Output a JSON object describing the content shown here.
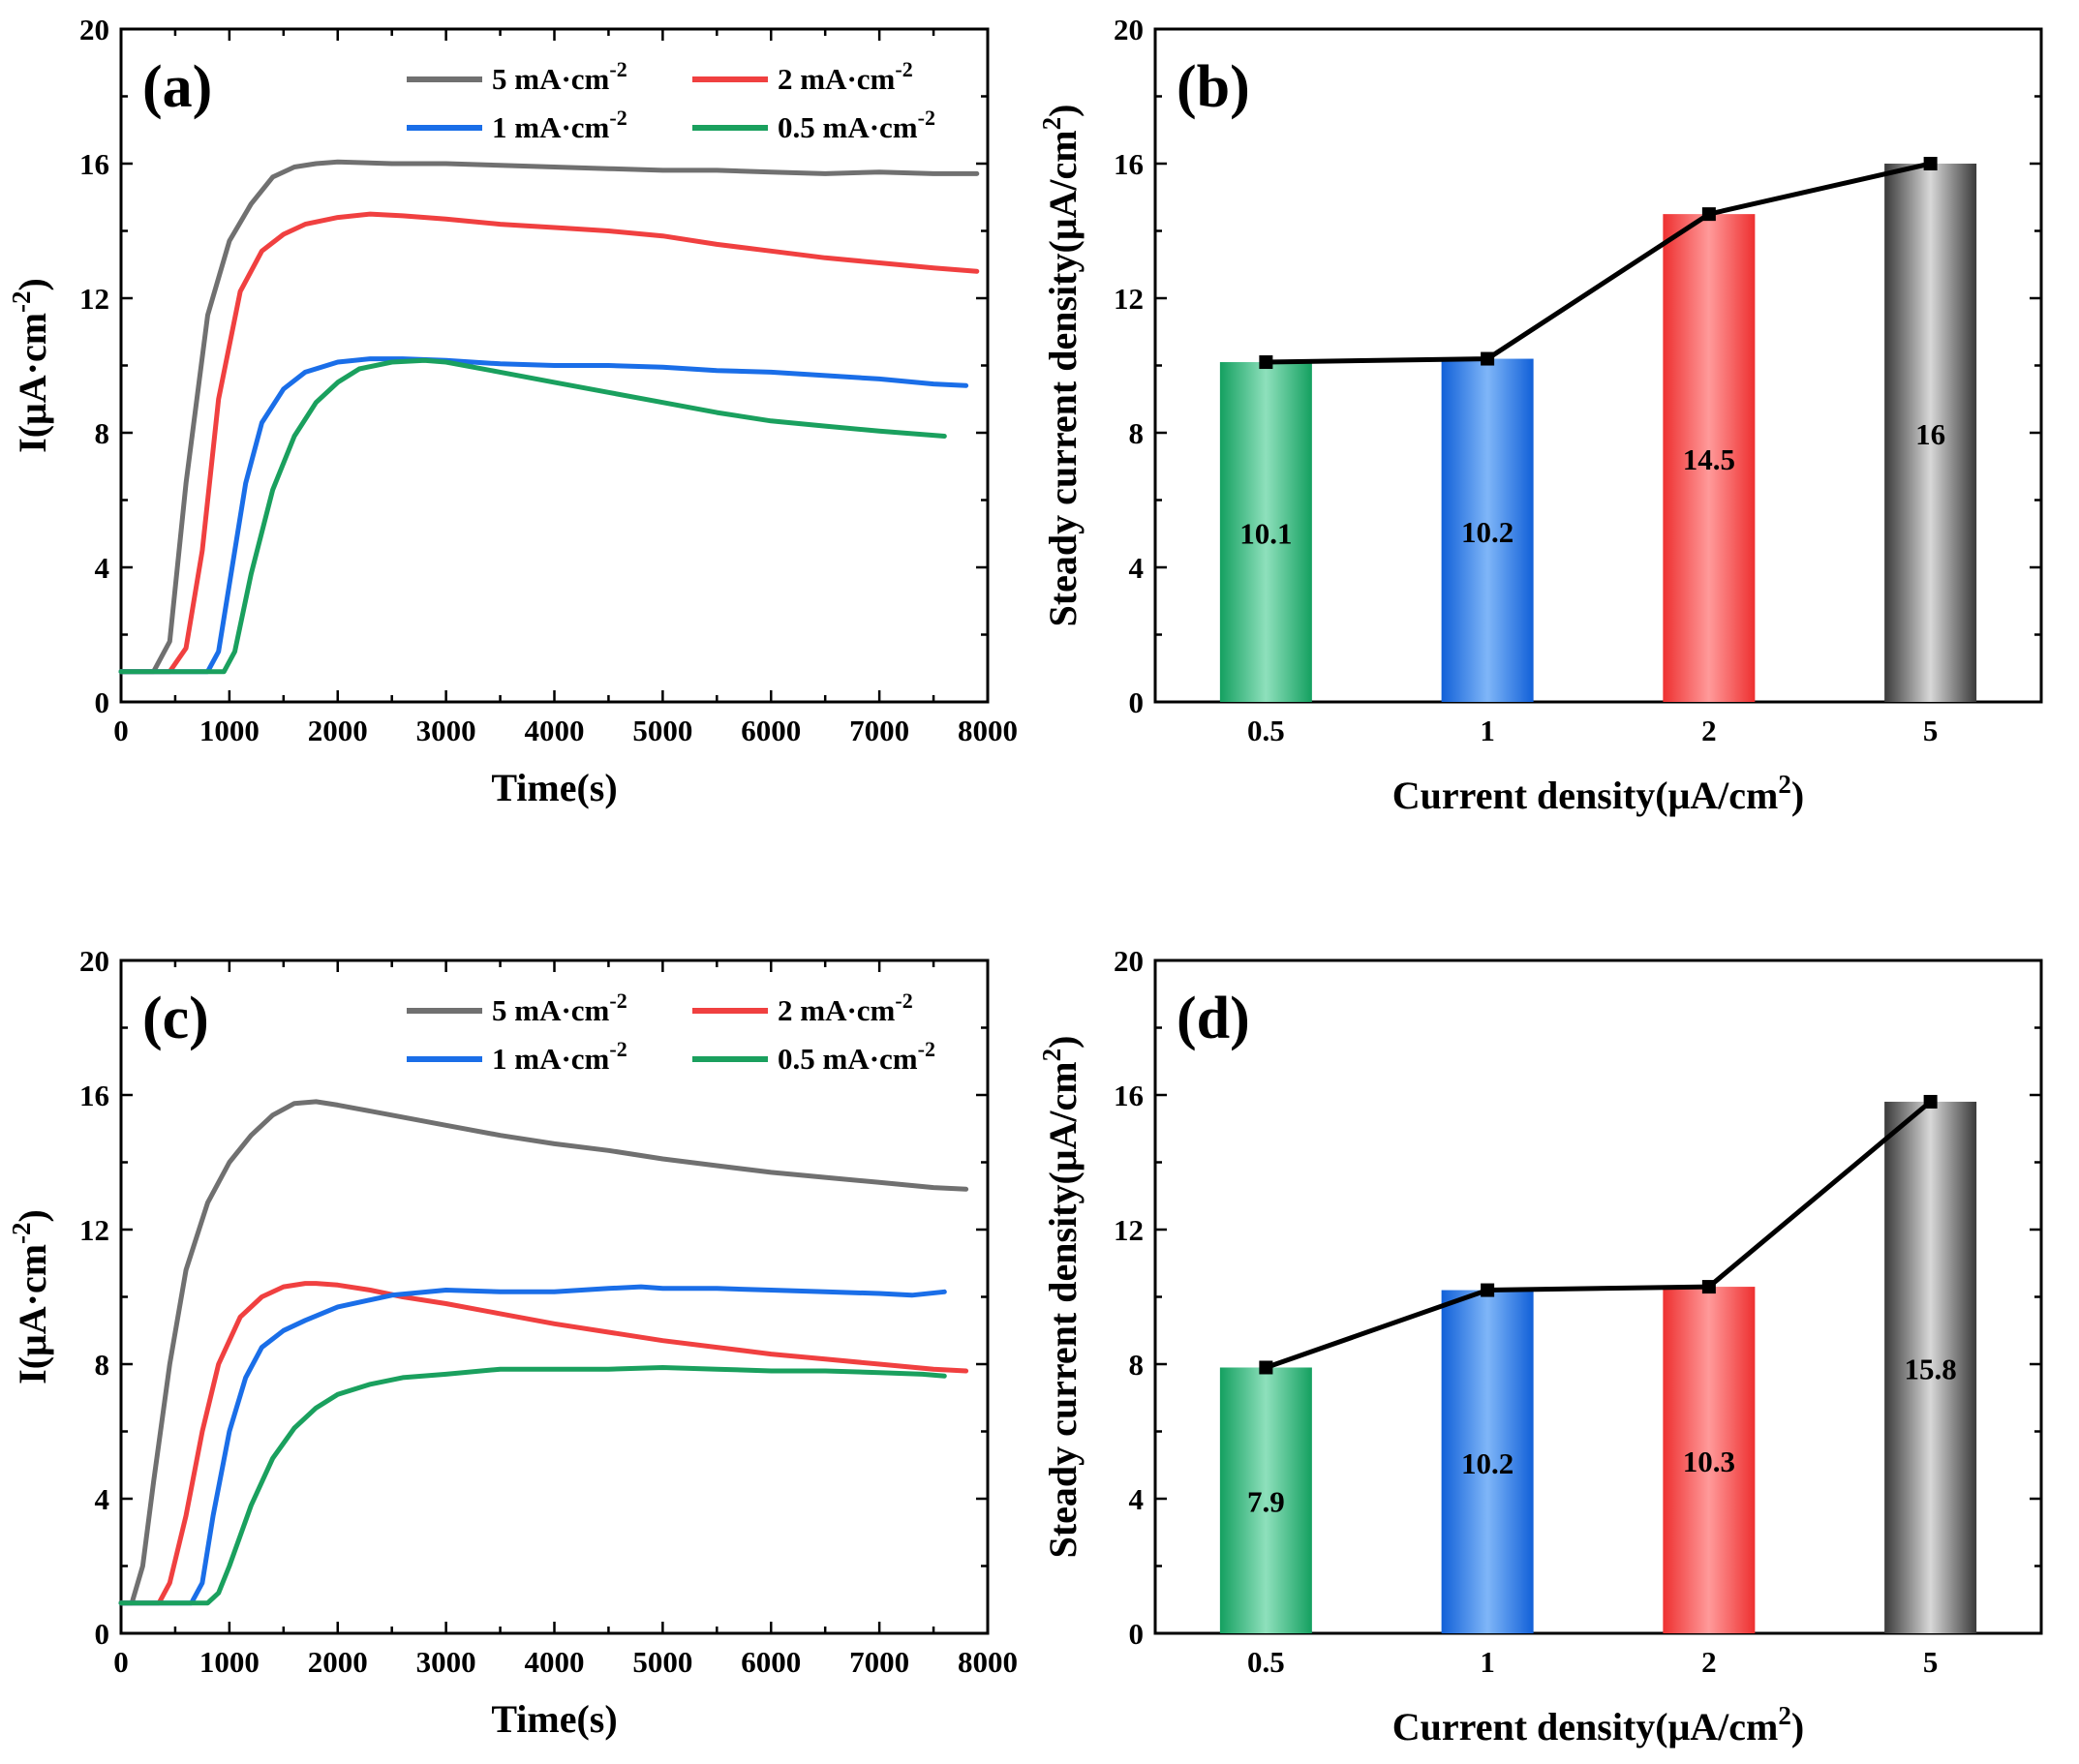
{
  "chart_data": [
    {
      "type": "line",
      "panel_label": "(a)",
      "xlabel": "Time(s)",
      "ylabel": "I(μA·cm⁻²)",
      "xlim": [
        0,
        8000
      ],
      "ylim": [
        0,
        20
      ],
      "xticks": [
        0,
        1000,
        2000,
        3000,
        4000,
        5000,
        6000,
        7000,
        8000
      ],
      "yticks": [
        0,
        4,
        8,
        12,
        16,
        20
      ],
      "series": [
        {
          "name": "5 mA·cm⁻²",
          "color": "#707070",
          "x": [
            0,
            300,
            450,
            600,
            800,
            1000,
            1200,
            1400,
            1600,
            1800,
            2000,
            2500,
            3000,
            3500,
            4000,
            4500,
            5000,
            5500,
            6000,
            6500,
            7000,
            7500,
            7900
          ],
          "y": [
            0.9,
            0.9,
            1.8,
            6.5,
            11.5,
            13.7,
            14.8,
            15.6,
            15.9,
            16.0,
            16.05,
            16.0,
            16.0,
            15.95,
            15.9,
            15.85,
            15.8,
            15.8,
            15.75,
            15.7,
            15.75,
            15.7,
            15.7
          ]
        },
        {
          "name": "2 mA·cm⁻²",
          "color": "#f04040",
          "x": [
            0,
            450,
            600,
            750,
            900,
            1100,
            1300,
            1500,
            1700,
            2000,
            2300,
            2600,
            3000,
            3500,
            4000,
            4500,
            5000,
            5500,
            6000,
            6500,
            7000,
            7500,
            7900
          ],
          "y": [
            0.9,
            0.9,
            1.6,
            4.5,
            9.0,
            12.2,
            13.4,
            13.9,
            14.2,
            14.4,
            14.5,
            14.45,
            14.35,
            14.2,
            14.1,
            14.0,
            13.85,
            13.6,
            13.4,
            13.2,
            13.05,
            12.9,
            12.8
          ]
        },
        {
          "name": "1 mA·cm⁻²",
          "color": "#1a6ee8",
          "x": [
            0,
            800,
            900,
            1000,
            1150,
            1300,
            1500,
            1700,
            2000,
            2300,
            2600,
            3000,
            3500,
            4000,
            4500,
            5000,
            5500,
            6000,
            6500,
            7000,
            7500,
            7800
          ],
          "y": [
            0.9,
            0.9,
            1.5,
            3.5,
            6.5,
            8.3,
            9.3,
            9.8,
            10.1,
            10.2,
            10.2,
            10.15,
            10.05,
            10.0,
            10.0,
            9.95,
            9.85,
            9.8,
            9.7,
            9.6,
            9.45,
            9.4
          ]
        },
        {
          "name": "0.5 mA·cm⁻²",
          "color": "#1aa05e",
          "x": [
            0,
            950,
            1050,
            1200,
            1400,
            1600,
            1800,
            2000,
            2200,
            2500,
            2800,
            3000,
            3500,
            4000,
            4500,
            5000,
            5500,
            6000,
            6500,
            7000,
            7400,
            7600
          ],
          "y": [
            0.9,
            0.9,
            1.5,
            3.8,
            6.3,
            7.9,
            8.9,
            9.5,
            9.9,
            10.1,
            10.15,
            10.1,
            9.8,
            9.5,
            9.2,
            8.9,
            8.6,
            8.35,
            8.2,
            8.05,
            7.95,
            7.9
          ]
        }
      ]
    },
    {
      "type": "bar",
      "panel_label": "(b)",
      "xlabel": "Current density(μA/cm²)",
      "ylabel": "Steady current density(μA/cm²)",
      "ylim": [
        0,
        20
      ],
      "yticks": [
        0,
        4,
        8,
        12,
        16,
        20
      ],
      "categories": [
        "0.5",
        "1",
        "2",
        "5"
      ],
      "values": [
        10.1,
        10.2,
        14.5,
        16
      ],
      "value_labels": [
        "10.1",
        "10.2",
        "14.5",
        "16"
      ],
      "colors": [
        "#1aa868",
        "#1a6ee8",
        "#f04040",
        "#555555"
      ]
    },
    {
      "type": "line",
      "panel_label": "(c)",
      "xlabel": "Time(s)",
      "ylabel": "I(μA·cm⁻²)",
      "xlim": [
        0,
        8000
      ],
      "ylim": [
        0,
        20
      ],
      "xticks": [
        0,
        1000,
        2000,
        3000,
        4000,
        5000,
        6000,
        7000,
        8000
      ],
      "yticks": [
        0,
        4,
        8,
        12,
        16,
        20
      ],
      "series": [
        {
          "name": "5 mA·cm⁻²",
          "color": "#707070",
          "x": [
            0,
            100,
            200,
            300,
            450,
            600,
            800,
            1000,
            1200,
            1400,
            1600,
            1800,
            2000,
            2500,
            3000,
            3500,
            4000,
            4500,
            5000,
            5500,
            6000,
            6500,
            7000,
            7500,
            7800
          ],
          "y": [
            0.9,
            0.9,
            2.0,
            4.5,
            8.0,
            10.8,
            12.8,
            14.0,
            14.8,
            15.4,
            15.75,
            15.8,
            15.7,
            15.4,
            15.1,
            14.8,
            14.55,
            14.35,
            14.1,
            13.9,
            13.7,
            13.55,
            13.4,
            13.25,
            13.2
          ]
        },
        {
          "name": "2 mA·cm⁻²",
          "color": "#f04040",
          "x": [
            0,
            350,
            450,
            600,
            750,
            900,
            1100,
            1300,
            1500,
            1700,
            1800,
            2000,
            2300,
            2600,
            3000,
            3500,
            4000,
            4500,
            5000,
            5500,
            6000,
            6500,
            7000,
            7500,
            7800
          ],
          "y": [
            0.9,
            0.9,
            1.5,
            3.5,
            6.0,
            8.0,
            9.4,
            10.0,
            10.3,
            10.4,
            10.4,
            10.35,
            10.2,
            10.0,
            9.8,
            9.5,
            9.2,
            8.95,
            8.7,
            8.5,
            8.3,
            8.15,
            8.0,
            7.85,
            7.8
          ]
        },
        {
          "name": "1 mA·cm⁻²",
          "color": "#1a6ee8",
          "x": [
            0,
            650,
            750,
            850,
            1000,
            1150,
            1300,
            1500,
            1700,
            2000,
            2500,
            3000,
            3500,
            4000,
            4500,
            4800,
            5000,
            5500,
            6000,
            6500,
            7000,
            7300,
            7600
          ],
          "y": [
            0.9,
            0.9,
            1.5,
            3.5,
            6.0,
            7.6,
            8.5,
            9.0,
            9.3,
            9.7,
            10.05,
            10.2,
            10.15,
            10.15,
            10.25,
            10.3,
            10.25,
            10.25,
            10.2,
            10.15,
            10.1,
            10.05,
            10.15
          ]
        },
        {
          "name": "0.5 mA·cm⁻²",
          "color": "#1aa05e",
          "x": [
            0,
            800,
            900,
            1000,
            1200,
            1400,
            1600,
            1800,
            2000,
            2300,
            2600,
            3000,
            3500,
            4000,
            4500,
            5000,
            5500,
            6000,
            6500,
            7000,
            7400,
            7600
          ],
          "y": [
            0.9,
            0.9,
            1.2,
            2.0,
            3.8,
            5.2,
            6.1,
            6.7,
            7.1,
            7.4,
            7.6,
            7.7,
            7.85,
            7.85,
            7.85,
            7.9,
            7.85,
            7.8,
            7.8,
            7.75,
            7.7,
            7.65
          ]
        }
      ]
    },
    {
      "type": "bar",
      "panel_label": "(d)",
      "xlabel": "Current density(μA/cm²)",
      "ylabel": "Steady current density(μA/cm²)",
      "ylim": [
        0,
        20
      ],
      "yticks": [
        0,
        4,
        8,
        12,
        16,
        20
      ],
      "categories": [
        "0.5",
        "1",
        "2",
        "5"
      ],
      "values": [
        7.9,
        10.2,
        10.3,
        15.8
      ],
      "value_labels": [
        "7.9",
        "10.2",
        "10.3",
        "15.8"
      ],
      "colors": [
        "#1aa868",
        "#1a6ee8",
        "#f04040",
        "#555555"
      ]
    }
  ]
}
